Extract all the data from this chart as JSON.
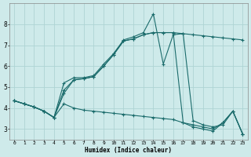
{
  "xlabel": "Humidex (Indice chaleur)",
  "bg_color": "#ceeaea",
  "grid_color": "#aed4d4",
  "line_color": "#1a6b6b",
  "xlim": [
    -0.5,
    23.5
  ],
  "ylim": [
    2.5,
    9.0
  ],
  "xticks": [
    0,
    1,
    2,
    3,
    4,
    5,
    6,
    7,
    8,
    9,
    10,
    11,
    12,
    13,
    14,
    15,
    16,
    17,
    18,
    19,
    20,
    21,
    22,
    23
  ],
  "yticks": [
    3,
    4,
    5,
    6,
    7,
    8
  ],
  "series": [
    {
      "x": [
        0,
        1,
        2,
        3,
        4,
        5,
        6,
        7,
        8,
        9,
        10,
        11,
        12,
        13,
        14,
        15,
        16,
        17,
        18,
        19,
        20,
        21,
        22,
        23
      ],
      "y": [
        4.35,
        4.2,
        4.05,
        3.85,
        3.55,
        4.85,
        5.35,
        5.4,
        5.5,
        6.0,
        6.55,
        7.2,
        7.3,
        7.5,
        7.6,
        7.6,
        7.6,
        7.55,
        7.5,
        7.45,
        7.4,
        7.35,
        7.3,
        7.25
      ]
    },
    {
      "x": [
        0,
        1,
        2,
        3,
        4,
        5,
        6,
        7,
        8,
        9,
        10,
        11,
        12,
        13,
        14,
        15,
        16,
        17,
        18,
        19,
        20,
        21,
        22,
        23
      ],
      "y": [
        4.35,
        4.2,
        4.05,
        3.85,
        3.55,
        5.2,
        5.45,
        5.45,
        5.55,
        6.1,
        6.6,
        7.25,
        7.4,
        7.6,
        8.5,
        6.1,
        7.5,
        7.55,
        3.4,
        3.2,
        3.1,
        3.2,
        3.85,
        2.75
      ]
    },
    {
      "x": [
        0,
        1,
        2,
        3,
        4,
        5,
        6,
        7,
        8,
        9,
        10,
        11,
        12,
        13,
        14,
        15,
        16,
        17,
        18,
        19,
        20,
        21,
        22,
        23
      ],
      "y": [
        4.35,
        4.2,
        4.05,
        3.85,
        3.55,
        4.7,
        5.35,
        5.4,
        5.5,
        6.0,
        6.55,
        7.2,
        7.3,
        7.5,
        7.6,
        7.6,
        7.6,
        3.3,
        3.1,
        3.0,
        2.9,
        3.3,
        3.85,
        2.75
      ]
    },
    {
      "x": [
        0,
        1,
        2,
        3,
        4,
        5,
        6,
        7,
        8,
        9,
        10,
        11,
        12,
        13,
        14,
        15,
        16,
        17,
        18,
        19,
        20,
        21,
        22,
        23
      ],
      "y": [
        4.35,
        4.2,
        4.05,
        3.85,
        3.55,
        4.2,
        4.0,
        3.9,
        3.85,
        3.8,
        3.75,
        3.7,
        3.65,
        3.6,
        3.55,
        3.5,
        3.45,
        3.3,
        3.2,
        3.1,
        3.0,
        3.3,
        3.85,
        2.75
      ]
    }
  ]
}
